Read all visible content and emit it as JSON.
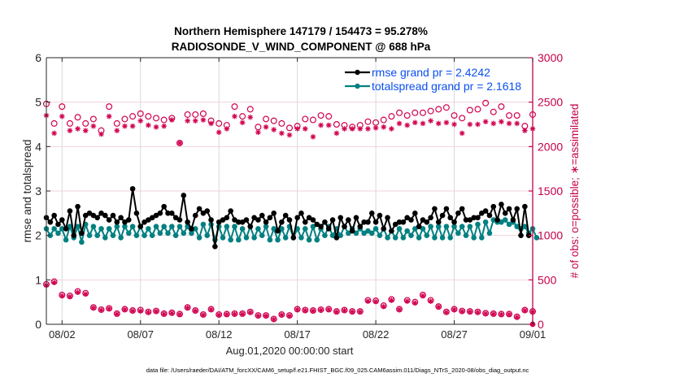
{
  "chart_data": {
    "type": "line",
    "title": [
      "Northern Hemisphere 147179 / 154473 = 95.278%",
      "RADIOSONDE_V_WIND_COMPONENT @ 688 hPa"
    ],
    "xlabel": "Aug.01,2020 00:00:00 start",
    "ylabel_left": "rmse and totalspread",
    "ylabel_right": "# of obs: o=possible; ∗=assimilated",
    "x_unit": "days since Aug.01,2020 00:00:00",
    "xlim": [
      0,
      31
    ],
    "x_ticks": [
      {
        "value": 1,
        "label": "08/02"
      },
      {
        "value": 6,
        "label": "08/07"
      },
      {
        "value": 11,
        "label": "08/12"
      },
      {
        "value": 16,
        "label": "08/17"
      },
      {
        "value": 21,
        "label": "08/22"
      },
      {
        "value": 26,
        "label": "08/27"
      },
      {
        "value": 31,
        "label": "09/01"
      }
    ],
    "ylim_left": [
      0,
      6
    ],
    "y_ticks_left": [
      0,
      1,
      2,
      3,
      4,
      5,
      6
    ],
    "ylim_right": [
      0,
      3000
    ],
    "y_ticks_right": [
      0,
      500,
      1000,
      1500,
      2000,
      2500,
      3000
    ],
    "grid": true,
    "legend_position": "top-right",
    "colors": {
      "rmse": "#000000",
      "totalspread": "#008080",
      "obs": "#d1004f",
      "axis_right": "#c4004a",
      "legend_text": "#0a4ff0",
      "grid_vertical": "#d9d9d9",
      "grid_horizontal": "#f2d3dd"
    },
    "legend": [
      {
        "label": "rmse grand pr = 2.4242",
        "series": "rmse"
      },
      {
        "label": "totalspread grand pr = 2.1618",
        "series": "totalspread"
      }
    ],
    "series": [
      {
        "name": "rmse",
        "axis": "left",
        "marker": "filled-circle",
        "x_start": 0.0,
        "x_step": 0.25,
        "values": [
          2.4,
          2.3,
          2.45,
          2.25,
          2.35,
          2.15,
          2.55,
          2.0,
          2.65,
          2.05,
          2.45,
          2.5,
          2.45,
          2.4,
          2.5,
          2.45,
          2.35,
          2.45,
          2.3,
          2.4,
          2.3,
          2.35,
          3.05,
          2.5,
          2.2,
          2.3,
          2.35,
          2.4,
          2.45,
          2.5,
          2.65,
          2.5,
          2.5,
          2.4,
          2.35,
          2.9,
          2.3,
          2.15,
          2.45,
          2.6,
          2.5,
          2.55,
          2.35,
          1.75,
          2.3,
          2.35,
          2.4,
          2.55,
          2.35,
          2.3,
          2.3,
          2.35,
          2.2,
          2.4,
          2.35,
          2.45,
          2.3,
          2.4,
          2.5,
          2.1,
          2.3,
          2.45,
          2.35,
          1.95,
          2.4,
          2.5,
          2.3,
          2.4,
          2.35,
          2.25,
          2.2,
          2.3,
          2.15,
          2.35,
          1.95,
          2.4,
          2.2,
          2.35,
          2.1,
          2.4,
          2.2,
          2.3,
          2.3,
          2.5,
          2.3,
          2.45,
          2.15,
          2.4,
          2.1,
          2.25,
          2.3,
          2.3,
          2.4,
          2.35,
          2.5,
          2.2,
          2.35,
          2.3,
          2.4,
          2.6,
          2.3,
          2.45,
          2.6,
          2.4,
          2.3,
          2.5,
          2.6,
          2.35,
          2.35,
          2.4,
          2.4,
          2.5,
          2.55,
          2.45,
          2.65,
          2.35,
          2.7,
          2.5,
          2.6,
          2.35,
          2.6,
          2.0,
          2.65,
          2.0
        ]
      },
      {
        "name": "totalspread",
        "axis": "left",
        "marker": "filled-circle",
        "x_start": 0.0,
        "x_step": 0.25,
        "values": [
          2.15,
          2.0,
          2.15,
          2.05,
          2.15,
          1.9,
          2.2,
          1.95,
          2.2,
          1.85,
          2.25,
          2.0,
          2.2,
          2.0,
          2.15,
          1.95,
          2.15,
          2.0,
          2.2,
          1.95,
          2.2,
          2.05,
          2.2,
          2.0,
          2.2,
          2.0,
          2.15,
          2.0,
          2.2,
          2.05,
          2.2,
          2.05,
          2.2,
          2.0,
          2.2,
          2.05,
          2.2,
          2.05,
          2.15,
          1.95,
          2.25,
          2.0,
          2.25,
          1.9,
          2.2,
          1.95,
          2.2,
          1.9,
          2.2,
          1.9,
          2.15,
          1.95,
          2.2,
          1.95,
          2.15,
          2.0,
          2.2,
          1.9,
          2.15,
          1.9,
          2.15,
          1.95,
          2.2,
          1.95,
          2.15,
          1.95,
          2.15,
          1.9,
          2.2,
          1.9,
          2.15,
          2.0,
          2.2,
          2.0,
          2.15,
          2.0,
          2.2,
          2.05,
          2.15,
          2.05,
          2.15,
          2.05,
          2.1,
          2.05,
          2.15,
          2.0,
          2.15,
          1.95,
          2.1,
          1.95,
          2.15,
          1.95,
          2.1,
          2.0,
          2.15,
          1.95,
          2.15,
          2.0,
          2.2,
          1.95,
          2.2,
          1.95,
          2.2,
          1.95,
          2.2,
          2.05,
          2.2,
          2.0,
          2.2,
          1.95,
          2.25,
          1.95,
          2.3,
          2.05,
          2.35,
          2.3,
          2.3,
          2.35,
          2.25,
          2.3,
          2.2,
          2.15,
          2.2,
          2.05,
          2.15,
          1.95
        ]
      },
      {
        "name": "obs_possible",
        "axis": "right",
        "marker": "open-circle",
        "x_start": 0.0,
        "x_step": 0.5,
        "values": [
          2480,
          2260,
          2450,
          2260,
          2330,
          2260,
          2310,
          2180,
          2450,
          2260,
          2310,
          2340,
          2370,
          2340,
          2320,
          2300,
          2320,
          2040,
          2360,
          2360,
          2370,
          2290,
          2260,
          2240,
          2450,
          2340,
          2420,
          2220,
          2310,
          2290,
          2260,
          2210,
          2230,
          2310,
          2300,
          2350,
          2340,
          2250,
          2240,
          2220,
          2240,
          2280,
          2270,
          2300,
          2340,
          2380,
          2350,
          2380,
          2380,
          2400,
          2420,
          2440,
          2350,
          2320,
          2410,
          2420,
          2490,
          2390,
          2450,
          2350,
          2350,
          2230,
          2360
        ]
      },
      {
        "name": "obs_assimilated",
        "axis": "right",
        "marker": "asterisk",
        "x_start": 0.0,
        "x_step": 0.5,
        "values": [
          2350,
          2150,
          2340,
          2180,
          2200,
          2180,
          2230,
          2140,
          2340,
          2180,
          2230,
          2230,
          2290,
          2240,
          2220,
          2230,
          2300,
          2040,
          2290,
          2290,
          2300,
          2260,
          2160,
          2200,
          2340,
          2270,
          2330,
          2160,
          2220,
          2190,
          2150,
          2130,
          2200,
          2200,
          2110,
          2240,
          2240,
          2150,
          2200,
          2200,
          2200,
          2200,
          2210,
          2220,
          2200,
          2260,
          2240,
          2270,
          2260,
          2290,
          2260,
          2270,
          2250,
          2150,
          2250,
          2250,
          2280,
          2260,
          2280,
          2260,
          2260,
          2180,
          2200
        ]
      },
      {
        "name": "obs_possible_low",
        "axis": "right",
        "marker": "open-circle",
        "x_start": 0.0,
        "x_step": 0.5,
        "values": [
          450,
          480,
          330,
          320,
          370,
          350,
          190,
          165,
          180,
          120,
          170,
          155,
          160,
          140,
          150,
          120,
          130,
          115,
          190,
          155,
          110,
          170,
          110,
          115,
          120,
          120,
          140,
          100,
          100,
          60,
          110,
          100,
          170,
          160,
          155,
          165,
          170,
          145,
          160,
          145,
          145,
          270,
          265,
          210,
          280,
          170,
          270,
          250,
          330,
          270,
          200,
          140,
          170,
          150,
          145,
          140,
          125,
          120,
          115,
          115,
          85,
          160,
          145
        ]
      },
      {
        "name": "obs_assimilated_low",
        "axis": "right",
        "marker": "asterisk",
        "x_start": 0.0,
        "x_step": 0.5,
        "values": [
          440,
          470,
          320,
          310,
          360,
          340,
          185,
          160,
          175,
          115,
          165,
          150,
          150,
          135,
          145,
          115,
          125,
          110,
          185,
          150,
          105,
          165,
          105,
          110,
          115,
          115,
          135,
          95,
          95,
          55,
          105,
          95,
          165,
          155,
          150,
          160,
          165,
          140,
          155,
          140,
          140,
          260,
          255,
          200,
          270,
          165,
          260,
          240,
          320,
          260,
          195,
          135,
          165,
          145,
          140,
          135,
          120,
          115,
          110,
          110,
          80,
          155,
          140
        ]
      },
      {
        "name": "obs_final",
        "axis": "right",
        "marker": "filled-circle",
        "x": [
          31.0
        ],
        "values": [
          0
        ]
      }
    ]
  },
  "footnote": "data file: /Users/raeder/DAI/ATM_forcXX/CAM6_setup/f.e21.FHIST_BGC.f09_025.CAM6assim.011/Diags_NTrS_2020-08/obs_diag_output.nc"
}
